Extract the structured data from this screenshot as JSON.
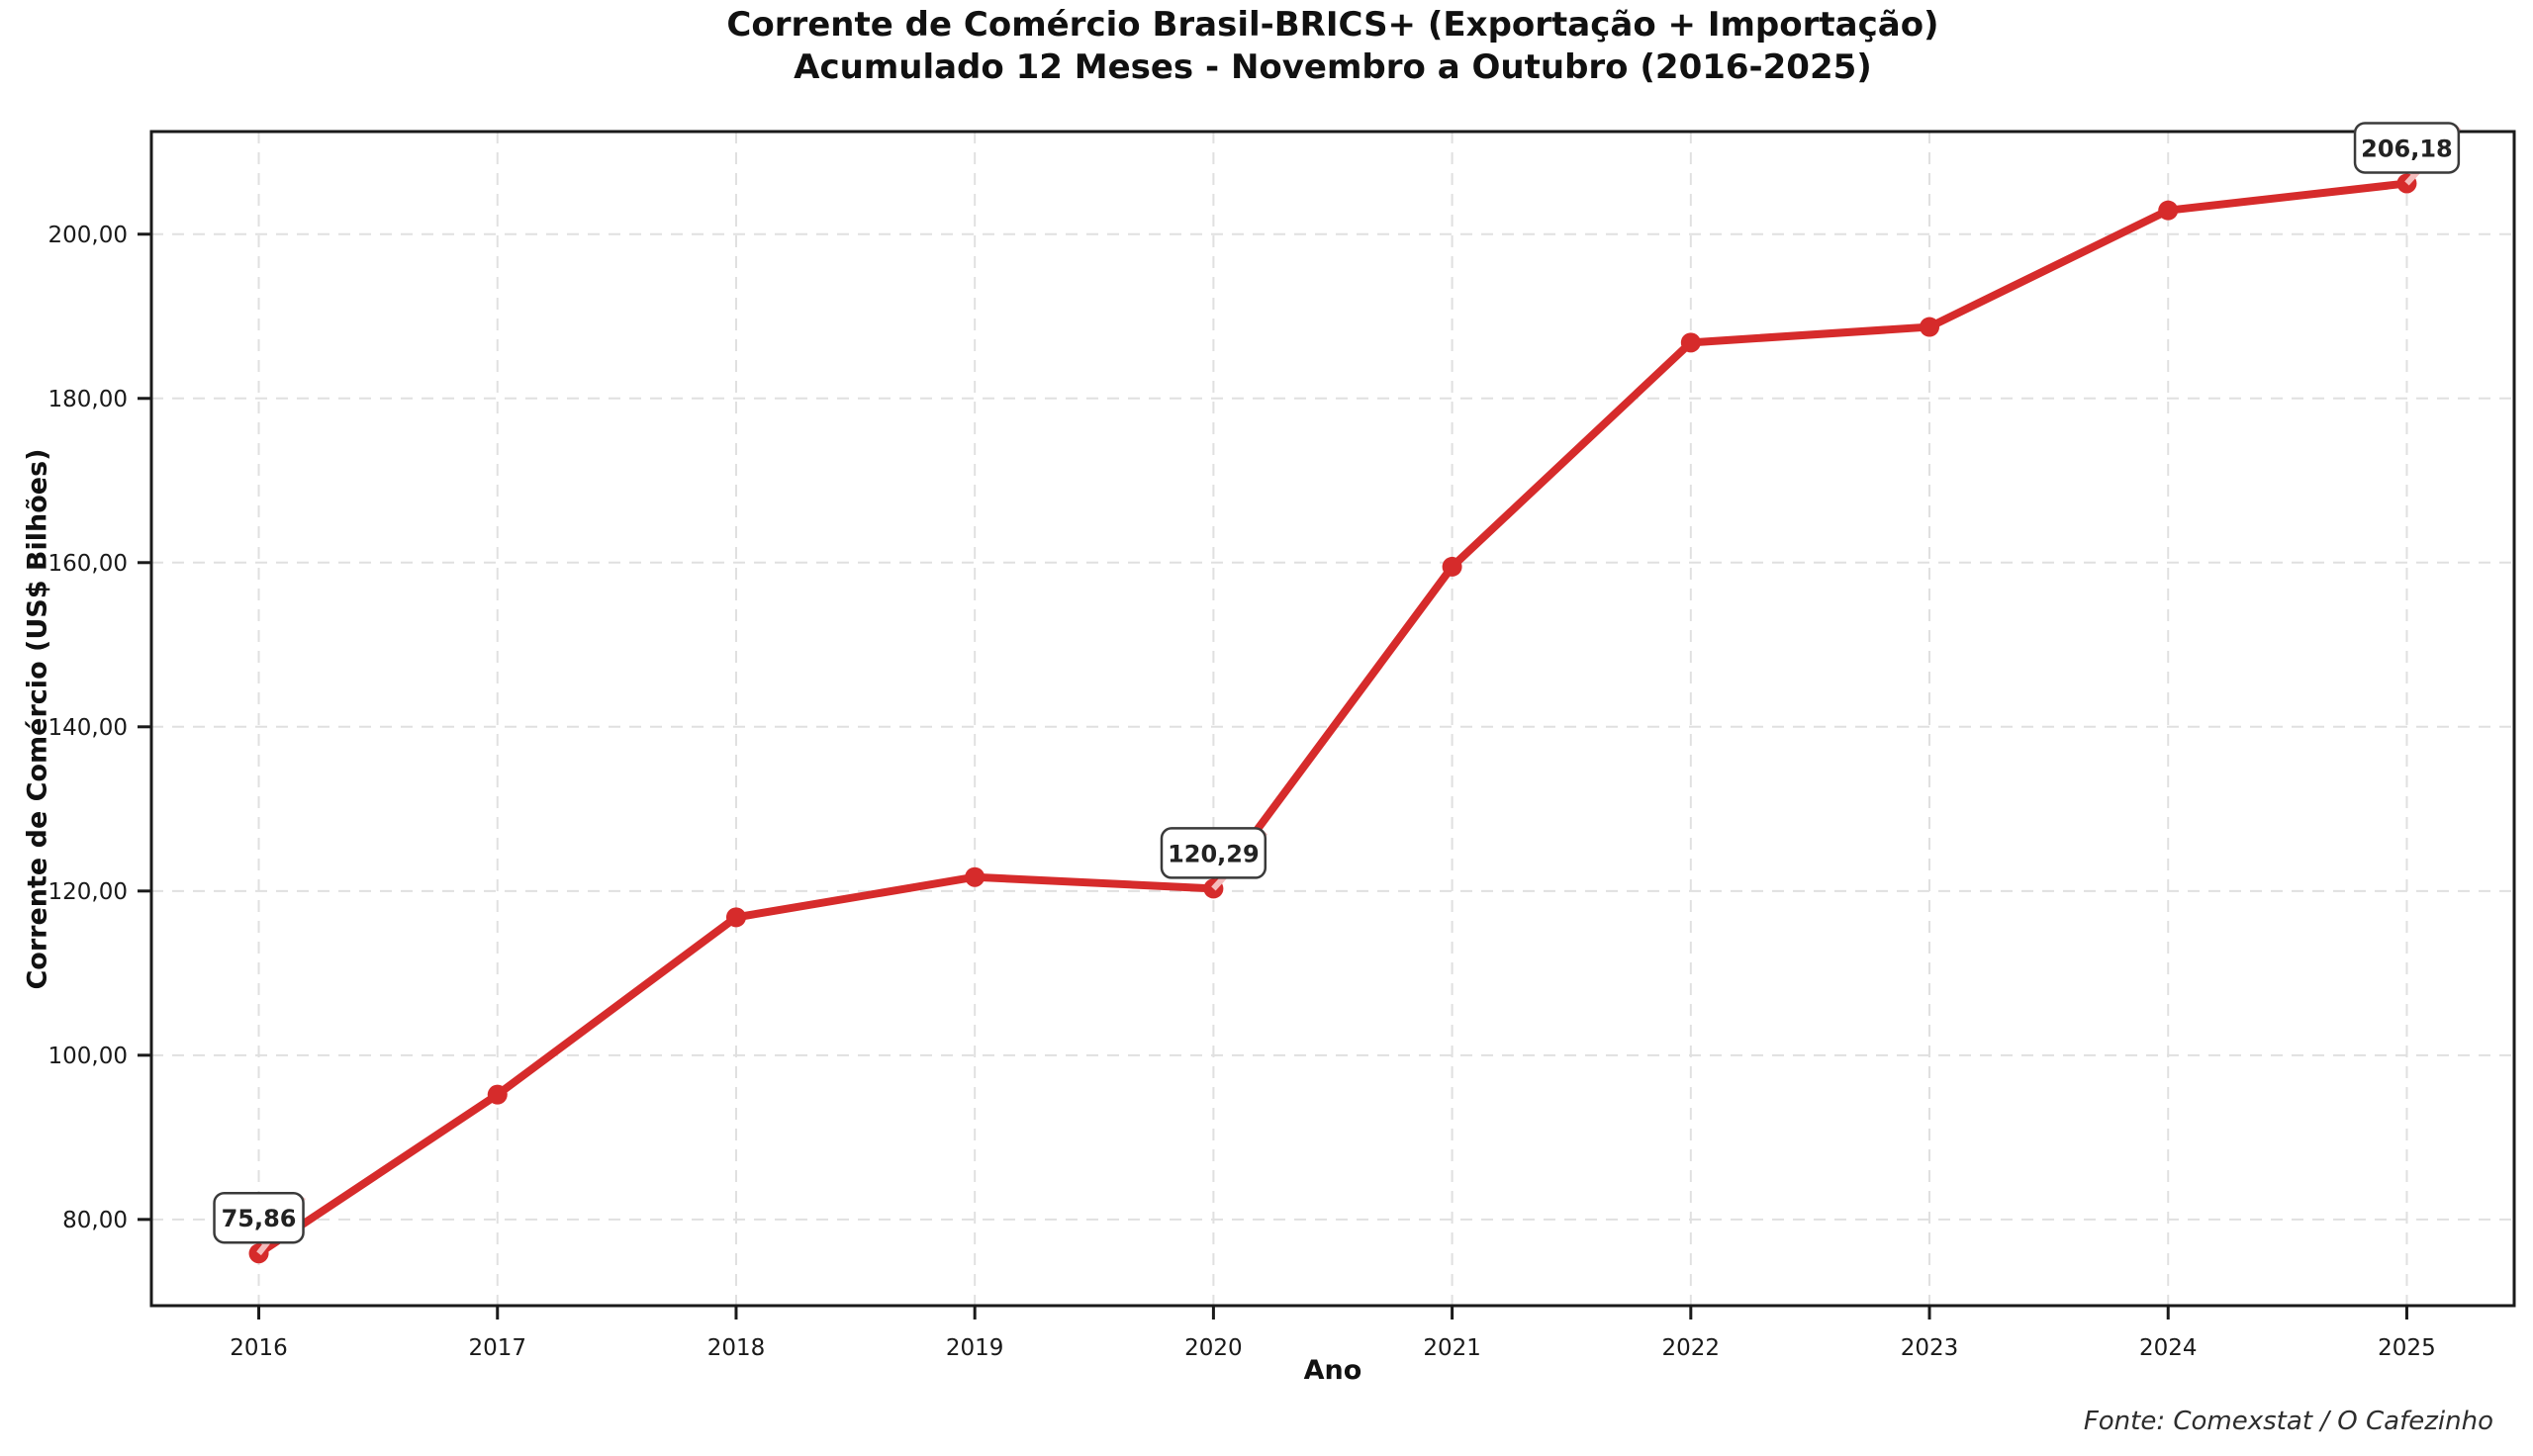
{
  "figure": {
    "title_line1": "Corrente de Comércio Brasil-BRICS+ (Exportação + Importação)",
    "title_line2": "Acumulado 12 Meses - Novembro a Outubro (2016-2025)",
    "source_note": "Fonte: Comexstat / O Cafezinho"
  },
  "chart_data": {
    "type": "line",
    "title": "Corrente de Comércio Brasil-BRICS+ (Exportação + Importação)",
    "subtitle": "Acumulado 12 Meses - Novembro a Outubro (2016-2025)",
    "xlabel": "Ano",
    "ylabel": "Corrente de Comércio (US$ Bilhões)",
    "categories": [
      2016,
      2017,
      2018,
      2019,
      2020,
      2021,
      2022,
      2023,
      2024,
      2025
    ],
    "series": [
      {
        "name": "Corrente de Comércio Brasil-BRICS+ (Exportação + Importação)",
        "values": [
          75.86,
          95.2,
          116.8,
          121.7,
          120.29,
          159.5,
          186.8,
          188.7,
          202.9,
          206.18
        ]
      }
    ],
    "annotations": [
      {
        "x": 2016,
        "value": 75.86,
        "label": "75,86"
      },
      {
        "x": 2020,
        "value": 120.29,
        "label": "120,29"
      },
      {
        "x": 2025,
        "value": 206.18,
        "label": "206,18"
      }
    ],
    "yticks": [
      80,
      100,
      120,
      140,
      160,
      180,
      200
    ],
    "ytick_labels": [
      "80,00",
      "100,00",
      "120,00",
      "140,00",
      "160,00",
      "180,00",
      "200,00"
    ],
    "xtick_labels": [
      "2016",
      "2017",
      "2018",
      "2019",
      "2020",
      "2021",
      "2022",
      "2023",
      "2024",
      "2025"
    ],
    "ylim": [
      69.5,
      212.5
    ],
    "xlim": [
      2015.55,
      2025.45
    ],
    "grid": true,
    "grid_style": "dashed",
    "legend": null,
    "line_color": "#d62b2b",
    "marker_color": "#d62b2b",
    "connector_color": "#f5bcbc",
    "grid_color": "#e0e0e0",
    "spine_color": "#1a1a1a",
    "annotation_border_color": "#3a3a3a",
    "annotation_fill_color": "#ffffff",
    "annotation_text_color": "#222222"
  }
}
